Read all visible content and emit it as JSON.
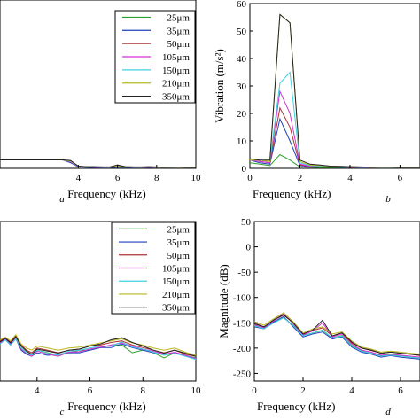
{
  "chart_data": [
    {
      "id": "a",
      "type": "line",
      "panel_label": "a",
      "xlabel": "Frequency (kHz)",
      "ylabel": "",
      "xlim": [
        0,
        10
      ],
      "ylim": [
        0,
        60
      ],
      "xticks": [
        4,
        6,
        8,
        10
      ],
      "yticks": [],
      "legend": "top-right",
      "x": [
        0,
        0.4,
        0.8,
        1.2,
        1.6,
        2.0,
        2.4,
        2.8,
        3.2,
        3.6,
        4.0,
        4.4,
        4.8,
        5.2,
        5.6,
        6.0,
        6.4,
        6.8,
        7.2,
        7.6,
        8.0,
        8.4,
        8.8,
        9.2,
        9.6,
        10.0
      ],
      "series": [
        {
          "name": "25μm",
          "color": "#2ca02c",
          "values": [
            3,
            3,
            3,
            3,
            3,
            3,
            3,
            3,
            3,
            2.2,
            0.6,
            0.4,
            0.4,
            0.3,
            0.3,
            0.5,
            0.4,
            0.3,
            0.3,
            0.4,
            0.3,
            0.3,
            0.3,
            0.3,
            0.3,
            0.3
          ]
        },
        {
          "name": "35μm",
          "color": "#1f3fbf",
          "values": [
            3,
            3,
            3,
            3,
            3,
            3,
            3,
            3,
            3,
            2.0,
            0.5,
            0.4,
            0.3,
            0.3,
            0.3,
            0.4,
            0.4,
            0.3,
            0.3,
            0.3,
            0.3,
            0.3,
            0.3,
            0.3,
            0.3,
            0.3
          ]
        },
        {
          "name": "50μm",
          "color": "#b03030",
          "values": [
            3,
            3,
            3,
            3,
            3,
            3,
            3,
            3,
            3,
            2.4,
            0.7,
            0.5,
            0.5,
            0.4,
            0.4,
            0.8,
            0.5,
            0.4,
            0.4,
            0.5,
            0.4,
            0.4,
            0.3,
            0.3,
            0.3,
            0.3
          ]
        },
        {
          "name": "105μm",
          "color": "#d62fd6",
          "values": [
            3,
            3,
            3,
            3,
            3,
            3,
            3,
            3,
            3,
            2.3,
            0.6,
            0.5,
            0.4,
            0.4,
            0.4,
            0.6,
            0.5,
            0.4,
            0.4,
            0.4,
            0.4,
            0.3,
            0.3,
            0.3,
            0.3,
            0.3
          ]
        },
        {
          "name": "150μm",
          "color": "#3fd0e0",
          "values": [
            3,
            3,
            3,
            3,
            3,
            3,
            3,
            3,
            3,
            2.5,
            0.7,
            0.5,
            0.5,
            0.4,
            0.4,
            0.7,
            0.5,
            0.4,
            0.4,
            0.5,
            0.4,
            0.4,
            0.3,
            0.3,
            0.3,
            0.3
          ]
        },
        {
          "name": "210μm",
          "color": "#b8b820",
          "values": [
            3,
            3,
            3,
            3,
            3,
            3,
            3,
            3,
            3,
            2.6,
            0.8,
            0.6,
            0.5,
            0.5,
            0.4,
            0.9,
            0.6,
            0.5,
            0.4,
            0.5,
            0.4,
            0.4,
            0.4,
            0.3,
            0.3,
            0.3
          ]
        },
        {
          "name": "350μm",
          "color": "#222222",
          "values": [
            3,
            3,
            3,
            3,
            3,
            3,
            3,
            3,
            3,
            2.8,
            0.8,
            0.6,
            0.6,
            0.5,
            0.5,
            1.2,
            0.6,
            0.5,
            0.5,
            0.6,
            0.5,
            0.4,
            0.4,
            0.4,
            0.3,
            0.3
          ]
        }
      ]
    },
    {
      "id": "b",
      "type": "line",
      "panel_label": "b",
      "xlabel": "Frequency (kHz)",
      "ylabel": "Vibration (m/s²)",
      "xlim": [
        0,
        6.8
      ],
      "ylim": [
        0,
        60
      ],
      "xticks": [
        0,
        2,
        4,
        6
      ],
      "yticks": [
        0,
        10,
        20,
        30,
        40,
        50,
        60
      ],
      "legend": "none",
      "x": [
        0,
        0.4,
        0.8,
        1.2,
        1.6,
        2.0,
        2.4,
        2.8,
        3.2,
        3.6,
        4.0,
        4.4,
        4.8,
        5.2,
        5.6,
        6.0,
        6.4,
        6.8
      ],
      "series": [
        {
          "name": "25μm",
          "color": "#2ca02c",
          "values": [
            2,
            1.5,
            1,
            5,
            3,
            0.5,
            0.4,
            0.3,
            0.3,
            0.3,
            0.3,
            0.3,
            0.3,
            0.2,
            0.2,
            0.2,
            0.2,
            0.2
          ]
        },
        {
          "name": "35μm",
          "color": "#1f3fbf",
          "values": [
            3,
            2,
            1.5,
            18,
            10,
            1,
            0.6,
            0.5,
            0.5,
            0.4,
            0.4,
            0.3,
            0.3,
            0.3,
            0.3,
            0.3,
            0.3,
            0.3
          ]
        },
        {
          "name": "50μm",
          "color": "#b03030",
          "values": [
            3,
            2.5,
            2,
            22,
            15,
            1.2,
            0.8,
            0.6,
            0.6,
            0.5,
            0.4,
            0.4,
            0.3,
            0.3,
            0.3,
            0.3,
            0.3,
            0.3
          ]
        },
        {
          "name": "105μm",
          "color": "#d62fd6",
          "values": [
            3,
            2.5,
            2,
            28,
            20,
            1.5,
            0.8,
            0.6,
            0.6,
            0.5,
            0.4,
            0.4,
            0.3,
            0.3,
            0.3,
            0.3,
            0.3,
            0.3
          ]
        },
        {
          "name": "150μm",
          "color": "#3fd0e0",
          "values": [
            3,
            3,
            2.5,
            31,
            35,
            2,
            1,
            0.8,
            0.7,
            0.6,
            0.5,
            0.4,
            0.4,
            0.3,
            0.3,
            0.3,
            0.3,
            0.3
          ]
        },
        {
          "name": "210μm",
          "color": "#b8b820",
          "values": [
            3,
            3,
            2.5,
            56,
            53,
            2.5,
            1.2,
            1,
            0.8,
            0.7,
            0.6,
            0.5,
            0.4,
            0.4,
            0.4,
            0.3,
            0.3,
            0.3
          ]
        },
        {
          "name": "350μm",
          "color": "#222222",
          "values": [
            3.5,
            3,
            3,
            56,
            53,
            3,
            1.5,
            1.2,
            0.8,
            0.7,
            0.6,
            0.5,
            0.4,
            0.4,
            0.4,
            0.3,
            0.3,
            0.3
          ]
        }
      ]
    },
    {
      "id": "c",
      "type": "line",
      "panel_label": "c",
      "xlabel": "Frequency (kHz)",
      "ylabel": "",
      "xlim": [
        2.6,
        10
      ],
      "ylim": [
        -260,
        50
      ],
      "xticks": [
        4,
        6,
        8,
        10
      ],
      "yticks": [],
      "legend": "top-right",
      "x": [
        2.6,
        2.8,
        3.0,
        3.2,
        3.4,
        3.6,
        3.8,
        4.0,
        4.4,
        4.8,
        5.2,
        5.6,
        6.0,
        6.4,
        6.8,
        7.2,
        7.6,
        8.0,
        8.4,
        8.8,
        9.2,
        9.6,
        10.0
      ],
      "series": [
        {
          "name": "25μm",
          "color": "#2ca02c",
          "values": [
            -188,
            -178,
            -186,
            -175,
            -195,
            -205,
            -210,
            -200,
            -205,
            -210,
            -205,
            -200,
            -200,
            -195,
            -190,
            -190,
            -205,
            -200,
            -205,
            -215,
            -205,
            -210,
            -215
          ]
        },
        {
          "name": "35μm",
          "color": "#1f3fbf",
          "values": [
            -185,
            -180,
            -190,
            -178,
            -200,
            -208,
            -212,
            -205,
            -210,
            -208,
            -205,
            -205,
            -200,
            -195,
            -195,
            -188,
            -195,
            -200,
            -205,
            -208,
            -205,
            -210,
            -218
          ]
        },
        {
          "name": "50μm",
          "color": "#b03030",
          "values": [
            -182,
            -176,
            -184,
            -172,
            -190,
            -200,
            -205,
            -196,
            -200,
            -205,
            -200,
            -198,
            -192,
            -190,
            -185,
            -182,
            -190,
            -195,
            -200,
            -205,
            -200,
            -208,
            -212
          ]
        },
        {
          "name": "105μm",
          "color": "#d62fd6",
          "values": [
            -186,
            -179,
            -188,
            -176,
            -198,
            -206,
            -212,
            -202,
            -208,
            -212,
            -204,
            -203,
            -198,
            -194,
            -190,
            -186,
            -192,
            -198,
            -202,
            -208,
            -204,
            -210,
            -216
          ]
        },
        {
          "name": "150μm",
          "color": "#3fd0e0",
          "values": [
            -188,
            -180,
            -190,
            -178,
            -196,
            -205,
            -210,
            -200,
            -206,
            -210,
            -202,
            -200,
            -196,
            -192,
            -192,
            -184,
            -194,
            -198,
            -204,
            -210,
            -206,
            -212,
            -218
          ]
        },
        {
          "name": "210μm",
          "color": "#b8b820",
          "values": [
            -180,
            -175,
            -182,
            -170,
            -188,
            -196,
            -200,
            -192,
            -196,
            -200,
            -196,
            -194,
            -190,
            -186,
            -182,
            -178,
            -186,
            -190,
            -196,
            -200,
            -196,
            -204,
            -210
          ]
        },
        {
          "name": "350μm",
          "color": "#222222",
          "values": [
            -184,
            -177,
            -186,
            -174,
            -192,
            -202,
            -208,
            -198,
            -202,
            -206,
            -200,
            -198,
            -192,
            -188,
            -180,
            -176,
            -185,
            -192,
            -200,
            -206,
            -200,
            -206,
            -212
          ]
        }
      ]
    },
    {
      "id": "d",
      "type": "line",
      "panel_label": "d",
      "xlabel": "Frequency (kHz)",
      "ylabel": "Magnitude (dB)",
      "xlim": [
        0,
        6.8
      ],
      "ylim": [
        -265,
        50
      ],
      "xticks": [
        0,
        2,
        4,
        6
      ],
      "yticks": [
        50,
        0,
        -50,
        -100,
        -150,
        -200,
        -250
      ],
      "legend": "none",
      "x": [
        0,
        0.4,
        0.8,
        1.2,
        1.6,
        2.0,
        2.4,
        2.8,
        3.2,
        3.6,
        4.0,
        4.4,
        4.8,
        5.2,
        5.6,
        6.0,
        6.4,
        6.8
      ],
      "series": [
        {
          "name": "25μm",
          "color": "#2ca02c",
          "values": [
            -155,
            -160,
            -150,
            -140,
            -155,
            -175,
            -170,
            -165,
            -180,
            -175,
            -195,
            -205,
            -210,
            -215,
            -212,
            -215,
            -218,
            -220
          ]
        },
        {
          "name": "35μm",
          "color": "#1f3fbf",
          "values": [
            -158,
            -162,
            -148,
            -138,
            -158,
            -178,
            -172,
            -168,
            -182,
            -178,
            -198,
            -208,
            -212,
            -218,
            -215,
            -218,
            -220,
            -222
          ]
        },
        {
          "name": "50μm",
          "color": "#b03030",
          "values": [
            -150,
            -158,
            -145,
            -135,
            -150,
            -172,
            -165,
            -160,
            -176,
            -170,
            -190,
            -200,
            -205,
            -210,
            -208,
            -210,
            -212,
            -215
          ]
        },
        {
          "name": "105μm",
          "color": "#d62fd6",
          "values": [
            -154,
            -160,
            -146,
            -132,
            -152,
            -174,
            -166,
            -150,
            -178,
            -172,
            -192,
            -204,
            -208,
            -214,
            -212,
            -214,
            -216,
            -218
          ]
        },
        {
          "name": "150μm",
          "color": "#3fd0e0",
          "values": [
            -156,
            -162,
            -150,
            -140,
            -156,
            -176,
            -170,
            -164,
            -180,
            -176,
            -196,
            -206,
            -210,
            -216,
            -214,
            -216,
            -218,
            -220
          ]
        },
        {
          "name": "210μm",
          "color": "#b8b820",
          "values": [
            -148,
            -155,
            -142,
            -130,
            -148,
            -170,
            -162,
            -158,
            -172,
            -168,
            -186,
            -198,
            -202,
            -208,
            -206,
            -208,
            -210,
            -212
          ]
        },
        {
          "name": "350μm",
          "color": "#222222",
          "values": [
            -152,
            -158,
            -144,
            -134,
            -150,
            -172,
            -164,
            -145,
            -176,
            -170,
            -188,
            -200,
            -204,
            -210,
            -208,
            -210,
            -212,
            -214
          ]
        }
      ]
    }
  ]
}
